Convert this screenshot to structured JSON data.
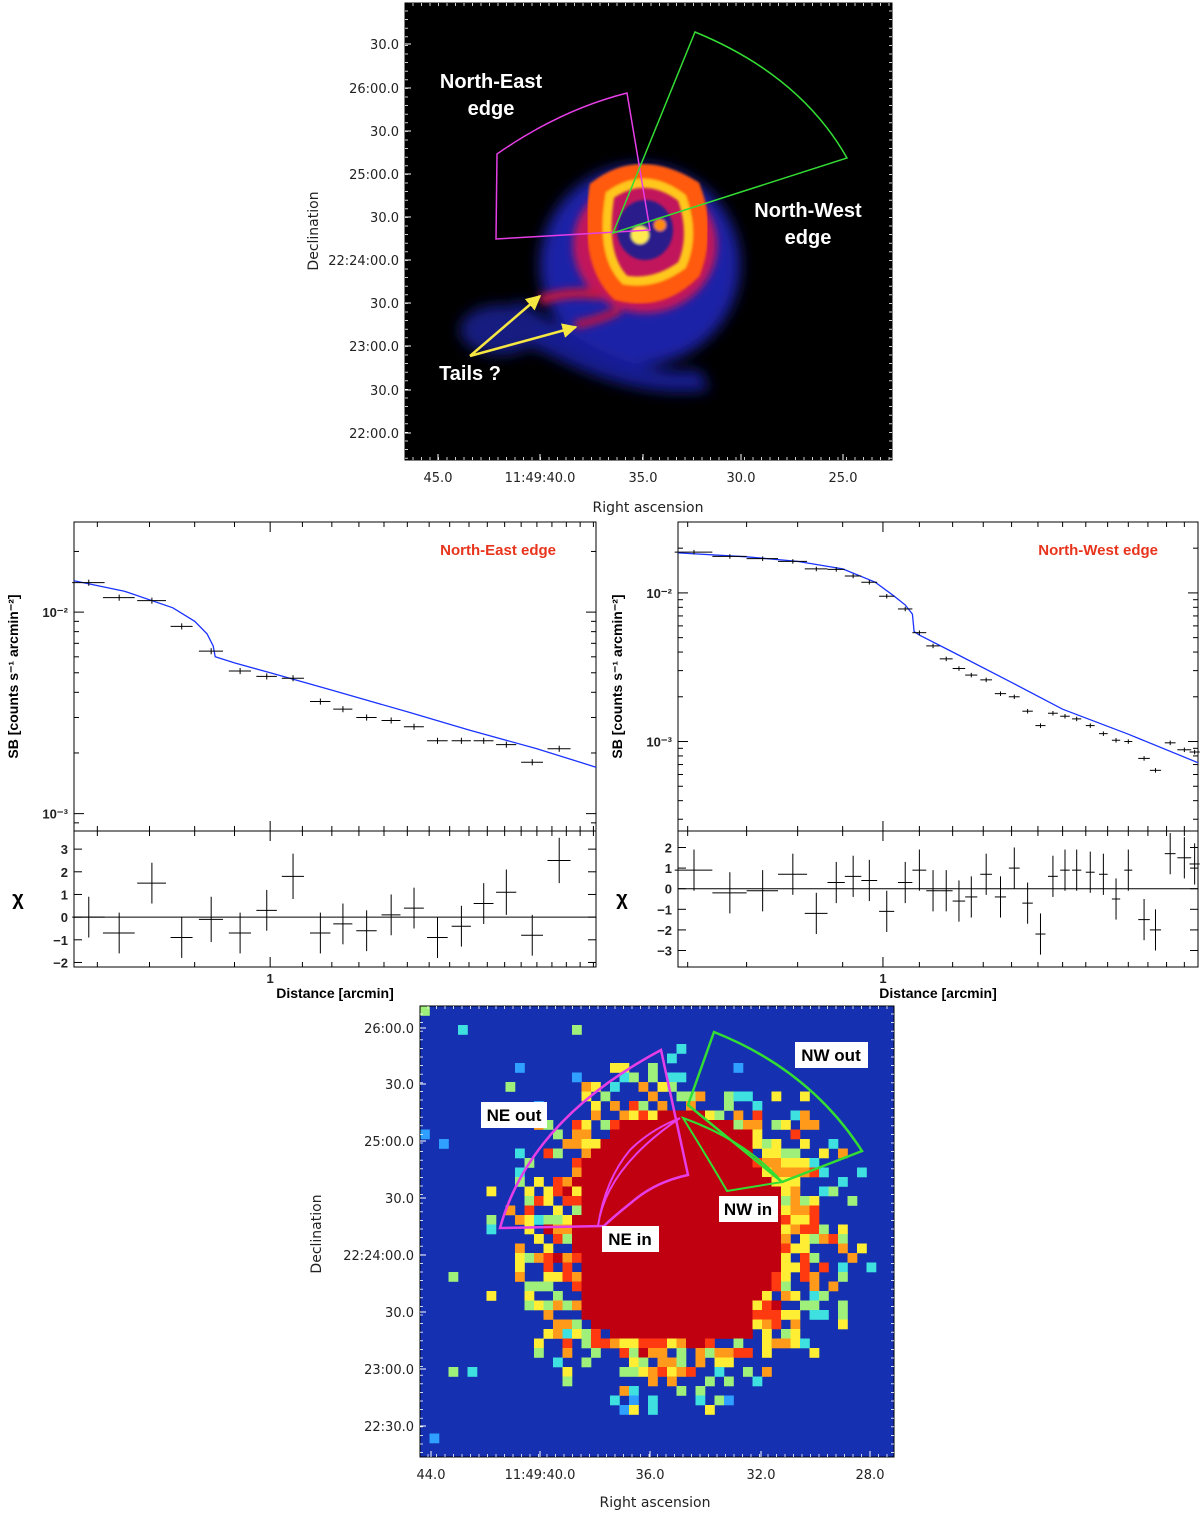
{
  "colors": {
    "ne_region": "#e63ee6",
    "nw_region": "#33dd33",
    "arrow": "#f5e642",
    "model_line": "#1a33ff",
    "edge_title": "#e8341c",
    "bg_black": "#000000",
    "bg_blue": "#1530b0"
  },
  "top_panel": {
    "ylabel": "Declination",
    "xlabel": "Right ascension",
    "yticks": [
      "30.0",
      "26:00.0",
      "30.0",
      "25:00.0",
      "30.0",
      "22:24:00.0",
      "30.0",
      "23:00.0",
      "30.0",
      "22:00.0"
    ],
    "xticks": [
      "45.0",
      "11:49:40.0",
      "35.0",
      "30.0",
      "25.0"
    ],
    "labels": {
      "ne_line1": "North-East",
      "ne_line2": "edge",
      "nw_line1": "North-West",
      "nw_line2": "edge",
      "tails": "Tails ?"
    }
  },
  "bottom_panel": {
    "ylabel": "Declination",
    "xlabel": "Right ascension",
    "yticks": [
      "26:00.0",
      "30.0",
      "25:00.0",
      "30.0",
      "22:24:00.0",
      "30.0",
      "23:00.0",
      "22:30.0"
    ],
    "xticks": [
      "44.0",
      "11:49:40.0",
      "36.0",
      "32.0",
      "28.0"
    ],
    "labels": {
      "ne_out": "NE out",
      "nw_out": "NW out",
      "ne_in": "NE in",
      "nw_in": "NW in"
    }
  },
  "chart_data": [
    {
      "type": "scatter",
      "title": "North-East edge",
      "xlabel": "Distance [arcmin]",
      "ylabel": "SB [counts s⁻¹ arcmin⁻²]",
      "resid_label": "χ",
      "xscale": "log",
      "yscale": "log",
      "xlim": [
        0.56,
        2.62
      ],
      "ylim": [
        0.00082,
        0.028
      ],
      "xtick_labels": [
        "1"
      ],
      "ytick_labels": [
        "10⁻²",
        "10⁻³"
      ],
      "resid_ylim": [
        -2.2,
        3.8
      ],
      "resid_ticks": [
        "3",
        "2",
        "1",
        "0",
        "−1",
        "−2"
      ],
      "points": [
        {
          "x": 0.585,
          "xerr": 0.028,
          "y": 0.014,
          "chi": 0.0,
          "chi_err": 0.9
        },
        {
          "x": 0.64,
          "xerr": 0.03,
          "y": 0.0118,
          "chi": -0.7,
          "chi_err": 0.9
        },
        {
          "x": 0.705,
          "xerr": 0.03,
          "y": 0.0114,
          "chi": 1.5,
          "chi_err": 0.9
        },
        {
          "x": 0.77,
          "xerr": 0.025,
          "y": 0.0085,
          "chi": -0.9,
          "chi_err": 0.9
        },
        {
          "x": 0.84,
          "xerr": 0.03,
          "y": 0.0064,
          "chi": -0.1,
          "chi_err": 1.0
        },
        {
          "x": 0.915,
          "xerr": 0.03,
          "y": 0.0051,
          "chi": -0.7,
          "chi_err": 0.9
        },
        {
          "x": 0.99,
          "xerr": 0.03,
          "y": 0.0048,
          "chi": 0.3,
          "chi_err": 0.9
        },
        {
          "x": 1.07,
          "xerr": 0.035,
          "y": 0.0047,
          "chi": 1.8,
          "chi_err": 1.0
        },
        {
          "x": 1.16,
          "xerr": 0.035,
          "y": 0.0036,
          "chi": -0.7,
          "chi_err": 0.9
        },
        {
          "x": 1.24,
          "xerr": 0.035,
          "y": 0.0033,
          "chi": -0.3,
          "chi_err": 0.9
        },
        {
          "x": 1.33,
          "xerr": 0.04,
          "y": 0.003,
          "chi": -0.6,
          "chi_err": 0.9
        },
        {
          "x": 1.43,
          "xerr": 0.04,
          "y": 0.0029,
          "chi": 0.1,
          "chi_err": 0.9
        },
        {
          "x": 1.53,
          "xerr": 0.045,
          "y": 0.0027,
          "chi": 0.4,
          "chi_err": 0.9
        },
        {
          "x": 1.64,
          "xerr": 0.05,
          "y": 0.0023,
          "chi": -0.9,
          "chi_err": 0.9
        },
        {
          "x": 1.76,
          "xerr": 0.05,
          "y": 0.0023,
          "chi": -0.4,
          "chi_err": 0.9
        },
        {
          "x": 1.88,
          "xerr": 0.055,
          "y": 0.0023,
          "chi": 0.6,
          "chi_err": 0.9
        },
        {
          "x": 2.01,
          "xerr": 0.06,
          "y": 0.0022,
          "chi": 1.1,
          "chi_err": 1.0
        },
        {
          "x": 2.17,
          "xerr": 0.07,
          "y": 0.0018,
          "chi": -0.8,
          "chi_err": 0.9
        },
        {
          "x": 2.35,
          "xerr": 0.08,
          "y": 0.0021,
          "chi": 2.5,
          "chi_err": 1.0
        }
      ],
      "model": {
        "x": [
          0.56,
          0.65,
          0.75,
          0.8,
          0.83,
          0.845,
          0.85,
          0.9,
          1.0,
          1.2,
          1.5,
          1.8,
          2.2,
          2.62
        ],
        "y": [
          0.0143,
          0.0127,
          0.0105,
          0.009,
          0.0078,
          0.0068,
          0.006,
          0.0056,
          0.005,
          0.0041,
          0.0032,
          0.0026,
          0.0021,
          0.0017
        ]
      }
    },
    {
      "type": "scatter",
      "title": "North-West edge",
      "xlabel": "Distance [arcmin]",
      "ylabel": "SB [counts s⁻¹ arcmin⁻²]",
      "resid_label": "χ",
      "xscale": "log",
      "yscale": "log",
      "xlim": [
        0.585,
        2.28
      ],
      "ylim": [
        0.00025,
        0.03
      ],
      "xtick_labels": [
        "1"
      ],
      "ytick_labels": [
        "10⁻²",
        "10⁻³"
      ],
      "resid_ylim": [
        -3.8,
        2.8
      ],
      "resid_ticks": [
        "2",
        "1",
        "0",
        "−1",
        "−2",
        "−3"
      ],
      "points": [
        {
          "x": 0.61,
          "xerr": 0.03,
          "y": 0.0188,
          "chi": 0.9,
          "chi_err": 1.0
        },
        {
          "x": 0.67,
          "xerr": 0.03,
          "y": 0.0176,
          "chi": -0.2,
          "chi_err": 1.0
        },
        {
          "x": 0.73,
          "xerr": 0.03,
          "y": 0.017,
          "chi": -0.1,
          "chi_err": 1.0
        },
        {
          "x": 0.79,
          "xerr": 0.03,
          "y": 0.0163,
          "chi": 0.7,
          "chi_err": 1.0
        },
        {
          "x": 0.84,
          "xerr": 0.025,
          "y": 0.0145,
          "chi": -1.2,
          "chi_err": 1.0
        },
        {
          "x": 0.885,
          "xerr": 0.02,
          "y": 0.0144,
          "chi": 0.3,
          "chi_err": 1.0
        },
        {
          "x": 0.925,
          "xerr": 0.02,
          "y": 0.013,
          "chi": 0.6,
          "chi_err": 1.0
        },
        {
          "x": 0.965,
          "xerr": 0.02,
          "y": 0.0118,
          "chi": 0.4,
          "chi_err": 1.0
        },
        {
          "x": 1.01,
          "xerr": 0.02,
          "y": 0.0095,
          "chi": -1.1,
          "chi_err": 1.0
        },
        {
          "x": 1.06,
          "xerr": 0.02,
          "y": 0.0078,
          "chi": 0.3,
          "chi_err": 1.0
        },
        {
          "x": 1.1,
          "xerr": 0.02,
          "y": 0.0054,
          "chi": 0.9,
          "chi_err": 1.0
        },
        {
          "x": 1.14,
          "xerr": 0.02,
          "y": 0.0044,
          "chi": -0.1,
          "chi_err": 1.0
        },
        {
          "x": 1.18,
          "xerr": 0.02,
          "y": 0.0036,
          "chi": -0.1,
          "chi_err": 1.0
        },
        {
          "x": 1.22,
          "xerr": 0.02,
          "y": 0.0031,
          "chi": -0.6,
          "chi_err": 1.0
        },
        {
          "x": 1.26,
          "xerr": 0.02,
          "y": 0.0028,
          "chi": -0.4,
          "chi_err": 1.0
        },
        {
          "x": 1.31,
          "xerr": 0.02,
          "y": 0.0026,
          "chi": 0.7,
          "chi_err": 1.0
        },
        {
          "x": 1.36,
          "xerr": 0.02,
          "y": 0.0021,
          "chi": -0.4,
          "chi_err": 1.0
        },
        {
          "x": 1.41,
          "xerr": 0.02,
          "y": 0.002,
          "chi": 1.0,
          "chi_err": 1.0
        },
        {
          "x": 1.46,
          "xerr": 0.02,
          "y": 0.0016,
          "chi": -0.7,
          "chi_err": 1.0
        },
        {
          "x": 1.51,
          "xerr": 0.02,
          "y": 0.00128,
          "chi": -2.2,
          "chi_err": 1.0
        },
        {
          "x": 1.56,
          "xerr": 0.02,
          "y": 0.00155,
          "chi": 0.6,
          "chi_err": 1.0
        },
        {
          "x": 1.61,
          "xerr": 0.02,
          "y": 0.00148,
          "chi": 0.9,
          "chi_err": 1.0
        },
        {
          "x": 1.66,
          "xerr": 0.02,
          "y": 0.00142,
          "chi": 0.9,
          "chi_err": 1.0
        },
        {
          "x": 1.72,
          "xerr": 0.02,
          "y": 0.00128,
          "chi": 0.8,
          "chi_err": 1.0
        },
        {
          "x": 1.78,
          "xerr": 0.02,
          "y": 0.00113,
          "chi": 0.7,
          "chi_err": 1.0
        },
        {
          "x": 1.84,
          "xerr": 0.02,
          "y": 0.00102,
          "chi": -0.5,
          "chi_err": 1.0
        },
        {
          "x": 1.9,
          "xerr": 0.02,
          "y": 0.001,
          "chi": 0.9,
          "chi_err": 1.0
        },
        {
          "x": 1.98,
          "xerr": 0.03,
          "y": 0.00077,
          "chi": -1.5,
          "chi_err": 1.0
        },
        {
          "x": 2.04,
          "xerr": 0.03,
          "y": 0.00064,
          "chi": -2.0,
          "chi_err": 1.0
        },
        {
          "x": 2.12,
          "xerr": 0.03,
          "y": 0.00098,
          "chi": 1.7,
          "chi_err": 1.0
        },
        {
          "x": 2.2,
          "xerr": 0.04,
          "y": 0.00088,
          "chi": 1.5,
          "chi_err": 1.0
        },
        {
          "x": 2.26,
          "xerr": 0.03,
          "y": 0.00085,
          "chi": 1.2,
          "chi_err": 1.0
        }
      ],
      "model": {
        "x": [
          0.585,
          0.7,
          0.8,
          0.9,
          0.98,
          1.03,
          1.06,
          1.08,
          1.085,
          1.1,
          1.2,
          1.4,
          1.6,
          1.9,
          2.28
        ],
        "y": [
          0.0186,
          0.0175,
          0.0163,
          0.0145,
          0.0118,
          0.0095,
          0.0083,
          0.0072,
          0.0055,
          0.0052,
          0.004,
          0.0025,
          0.00165,
          0.00112,
          0.00072
        ]
      }
    }
  ]
}
